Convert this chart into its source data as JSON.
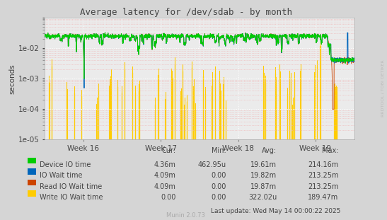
{
  "title": "Average latency for /dev/sdab - by month",
  "ylabel": "seconds",
  "background_color": "#d5d5d5",
  "plot_background": "#ebebeb",
  "grid_color_major": "#ffffff",
  "grid_color_minor": "#f0b0b0",
  "ylim_min": 1e-05,
  "ylim_max": 0.1,
  "week_labels": [
    "Week 16",
    "Week 17",
    "Week 18",
    "Week 19"
  ],
  "legend_items": [
    {
      "label": "Device IO time",
      "color": "#00cc00"
    },
    {
      "label": "IO Wait time",
      "color": "#0066bb"
    },
    {
      "label": "Read IO Wait time",
      "color": "#cc4400"
    },
    {
      "label": "Write IO Wait time",
      "color": "#ffcc00"
    }
  ],
  "table_headers": [
    "Cur:",
    "Min:",
    "Avg:",
    "Max:"
  ],
  "table_data": [
    [
      "4.36m",
      "462.95u",
      "19.61m",
      "214.16m"
    ],
    [
      "4.09m",
      "0.00",
      "19.82m",
      "213.25m"
    ],
    [
      "4.09m",
      "0.00",
      "19.87m",
      "213.25m"
    ],
    [
      "0.00",
      "0.00",
      "322.02u",
      "189.47m"
    ]
  ],
  "footer": "Last update: Wed May 14 00:00:22 2025",
  "munin_label": "Munin 2.0.73",
  "rrdtool_label": "RRDTOOL / TOBI OETIKER"
}
